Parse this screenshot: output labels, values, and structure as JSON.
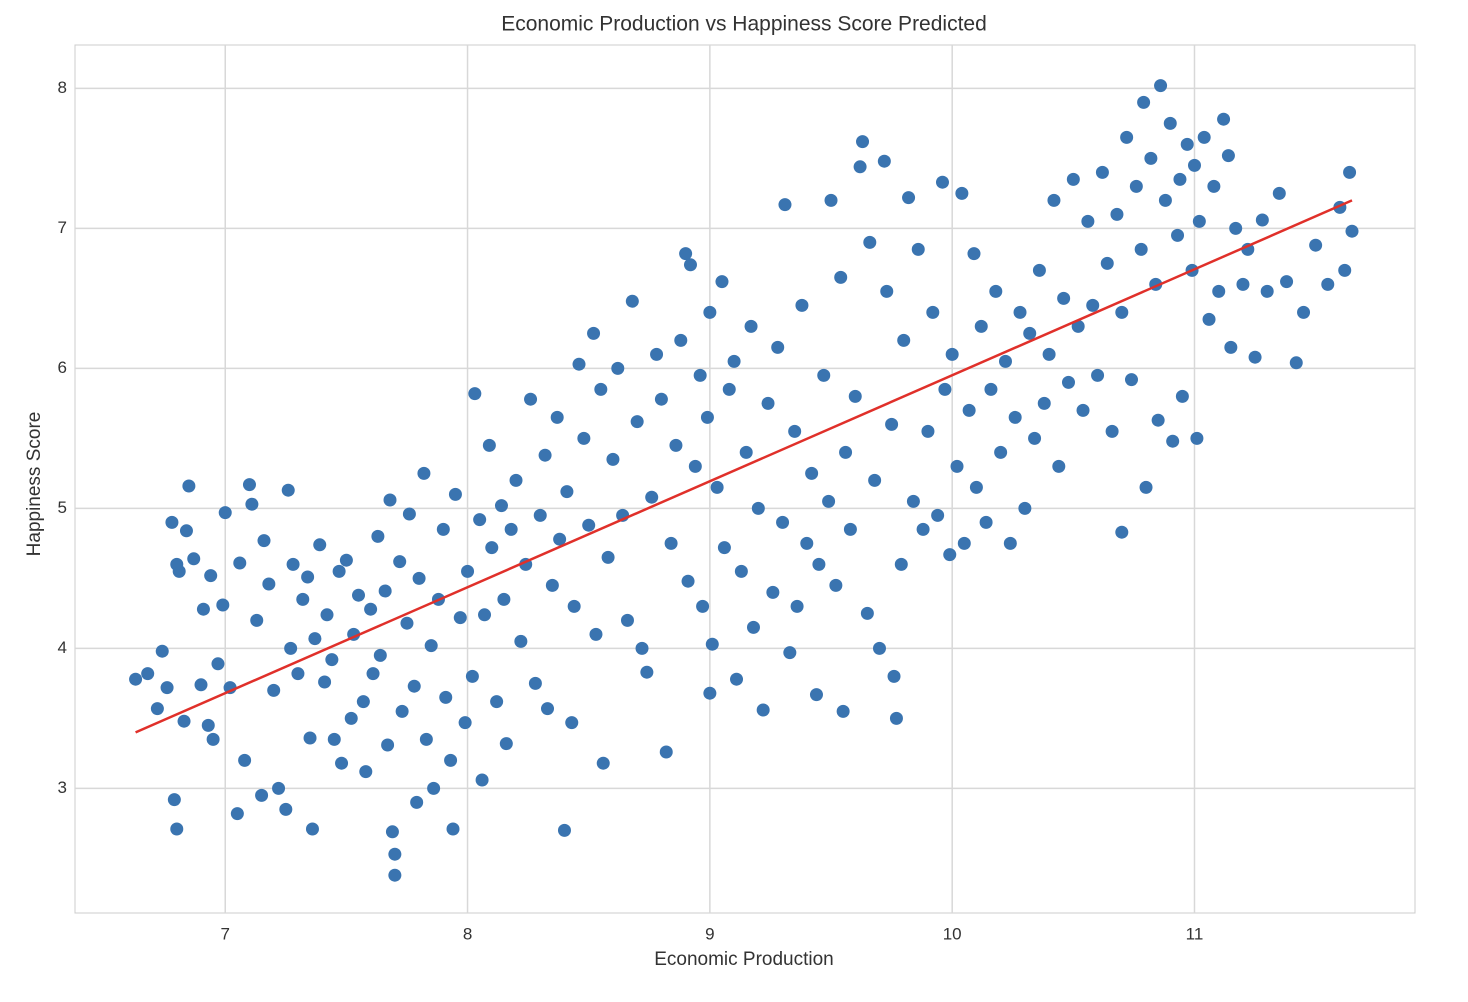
{
  "chart_data": {
    "type": "scatter",
    "title": "Economic Production vs Happiness Score Predicted",
    "xlabel": "Economic Production",
    "ylabel": "Happiness Score",
    "xlim": [
      6.38,
      11.91
    ],
    "ylim": [
      2.11,
      8.31
    ],
    "xticks": [
      7,
      8,
      9,
      10,
      11
    ],
    "yticks": [
      3,
      4,
      5,
      6,
      7,
      8
    ],
    "grid": true,
    "series": [
      {
        "type": "scatter",
        "color": "#3a74b0",
        "x": [
          6.63,
          6.68,
          6.72,
          6.74,
          6.76,
          6.78,
          6.79,
          6.8,
          6.8,
          6.81,
          6.83,
          6.84,
          6.85,
          6.87,
          6.9,
          6.91,
          6.93,
          6.94,
          6.95,
          6.97,
          6.99,
          7.0,
          7.02,
          7.05,
          7.06,
          7.08,
          7.1,
          7.11,
          7.13,
          7.15,
          7.16,
          7.18,
          7.2,
          7.22,
          7.25,
          7.26,
          7.27,
          7.28,
          7.3,
          7.32,
          7.34,
          7.35,
          7.36,
          7.37,
          7.39,
          7.41,
          7.42,
          7.44,
          7.45,
          7.47,
          7.48,
          7.5,
          7.52,
          7.53,
          7.55,
          7.57,
          7.58,
          7.6,
          7.61,
          7.63,
          7.64,
          7.66,
          7.67,
          7.68,
          7.69,
          7.7,
          7.7,
          7.72,
          7.73,
          7.75,
          7.76,
          7.78,
          7.79,
          7.8,
          7.82,
          7.83,
          7.85,
          7.86,
          7.88,
          7.9,
          7.91,
          7.93,
          7.94,
          7.95,
          7.97,
          7.99,
          8.0,
          8.02,
          8.03,
          8.05,
          8.06,
          8.07,
          8.09,
          8.1,
          8.12,
          8.14,
          8.15,
          8.16,
          8.18,
          8.2,
          8.22,
          8.24,
          8.26,
          8.28,
          8.3,
          8.32,
          8.33,
          8.35,
          8.37,
          8.38,
          8.4,
          8.41,
          8.43,
          8.44,
          8.46,
          8.48,
          8.5,
          8.52,
          8.53,
          8.55,
          8.56,
          8.58,
          8.6,
          8.62,
          8.64,
          8.66,
          8.68,
          8.7,
          8.72,
          8.74,
          8.76,
          8.78,
          8.8,
          8.82,
          8.84,
          8.86,
          8.88,
          8.9,
          8.91,
          8.92,
          8.94,
          8.96,
          8.97,
          8.99,
          9.0,
          9.0,
          9.01,
          9.03,
          9.05,
          9.06,
          9.08,
          9.1,
          9.11,
          9.13,
          9.15,
          9.17,
          9.18,
          9.2,
          9.22,
          9.24,
          9.26,
          9.28,
          9.3,
          9.31,
          9.33,
          9.35,
          9.36,
          9.38,
          9.4,
          9.42,
          9.44,
          9.45,
          9.47,
          9.49,
          9.5,
          9.52,
          9.54,
          9.55,
          9.56,
          9.58,
          9.6,
          9.62,
          9.63,
          9.65,
          9.66,
          9.68,
          9.7,
          9.72,
          9.73,
          9.75,
          9.76,
          9.77,
          9.79,
          9.8,
          9.82,
          9.84,
          9.86,
          9.88,
          9.9,
          9.92,
          9.94,
          9.96,
          9.97,
          9.99,
          10.0,
          10.02,
          10.04,
          10.05,
          10.07,
          10.09,
          10.1,
          10.12,
          10.14,
          10.16,
          10.18,
          10.2,
          10.22,
          10.24,
          10.26,
          10.28,
          10.3,
          10.32,
          10.34,
          10.36,
          10.38,
          10.4,
          10.42,
          10.44,
          10.46,
          10.48,
          10.5,
          10.52,
          10.54,
          10.56,
          10.58,
          10.6,
          10.62,
          10.64,
          10.66,
          10.68,
          10.7,
          10.7,
          10.72,
          10.74,
          10.76,
          10.78,
          10.79,
          10.8,
          10.82,
          10.84,
          10.85,
          10.86,
          10.88,
          10.9,
          10.91,
          10.93,
          10.94,
          10.95,
          10.97,
          10.99,
          11.0,
          11.01,
          11.02,
          11.04,
          11.06,
          11.08,
          11.1,
          11.12,
          11.14,
          11.15,
          11.17,
          11.2,
          11.22,
          11.25,
          11.28,
          11.3,
          11.35,
          11.38,
          11.42,
          11.45,
          11.5,
          11.55,
          11.6,
          11.62,
          11.64,
          11.65
        ],
        "values": [
          3.78,
          3.82,
          3.57,
          3.98,
          3.72,
          4.9,
          2.92,
          2.71,
          4.6,
          4.55,
          3.48,
          4.84,
          5.16,
          4.64,
          3.74,
          4.28,
          3.45,
          4.52,
          3.35,
          3.89,
          4.31,
          4.97,
          3.72,
          2.82,
          4.61,
          3.2,
          5.17,
          5.03,
          4.2,
          2.95,
          4.77,
          4.46,
          3.7,
          3.0,
          2.85,
          5.13,
          4.0,
          4.6,
          3.82,
          4.35,
          4.51,
          3.36,
          2.71,
          4.07,
          4.74,
          3.76,
          4.24,
          3.92,
          3.35,
          4.55,
          3.18,
          4.63,
          3.5,
          4.1,
          4.38,
          3.62,
          3.12,
          4.28,
          3.82,
          4.8,
          3.95,
          4.41,
          3.31,
          5.06,
          2.69,
          2.38,
          2.53,
          4.62,
          3.55,
          4.18,
          4.96,
          3.73,
          2.9,
          4.5,
          5.25,
          3.35,
          4.02,
          3.0,
          4.35,
          4.85,
          3.65,
          3.2,
          2.71,
          5.1,
          4.22,
          3.47,
          4.55,
          3.8,
          5.82,
          4.92,
          3.06,
          4.24,
          5.45,
          4.72,
          3.62,
          5.02,
          4.35,
          3.32,
          4.85,
          5.2,
          4.05,
          4.6,
          5.78,
          3.75,
          4.95,
          5.38,
          3.57,
          4.45,
          5.65,
          4.78,
          2.7,
          5.12,
          3.47,
          4.3,
          6.03,
          5.5,
          4.88,
          6.25,
          4.1,
          5.85,
          3.18,
          4.65,
          5.35,
          6.0,
          4.95,
          4.2,
          6.48,
          5.62,
          4.0,
          3.83,
          5.08,
          6.1,
          5.78,
          3.26,
          4.75,
          5.45,
          6.2,
          6.82,
          4.48,
          6.74,
          5.3,
          5.95,
          4.3,
          5.65,
          6.4,
          3.68,
          4.03,
          5.15,
          6.62,
          4.72,
          5.85,
          6.05,
          3.78,
          4.55,
          5.4,
          6.3,
          4.15,
          5.0,
          3.56,
          5.75,
          4.4,
          6.15,
          4.9,
          7.17,
          3.97,
          5.55,
          4.3,
          6.45,
          4.75,
          5.25,
          3.67,
          4.6,
          5.95,
          5.05,
          7.2,
          4.45,
          6.65,
          3.55,
          5.4,
          4.85,
          5.8,
          7.44,
          7.62,
          4.25,
          6.9,
          5.2,
          4.0,
          7.48,
          6.55,
          5.6,
          3.8,
          3.5,
          4.6,
          6.2,
          7.22,
          5.05,
          6.85,
          4.85,
          5.55,
          6.4,
          4.95,
          7.33,
          5.85,
          4.67,
          6.1,
          5.3,
          7.25,
          4.75,
          5.7,
          6.82,
          5.15,
          6.3,
          4.9,
          5.85,
          6.55,
          5.4,
          6.05,
          4.75,
          5.65,
          6.4,
          5.0,
          6.25,
          5.5,
          6.7,
          5.75,
          6.1,
          7.2,
          5.3,
          6.5,
          5.9,
          7.35,
          6.3,
          5.7,
          7.05,
          6.45,
          5.95,
          7.4,
          6.75,
          5.55,
          7.1,
          6.4,
          4.83,
          7.65,
          5.92,
          7.3,
          6.85,
          7.9,
          5.15,
          7.5,
          6.6,
          5.63,
          8.02,
          7.2,
          7.75,
          5.48,
          6.95,
          7.35,
          5.8,
          7.6,
          6.7,
          7.45,
          5.5,
          7.05,
          7.65,
          6.35,
          7.3,
          6.55,
          7.78,
          7.52,
          6.15,
          7.0,
          6.6,
          6.85,
          6.08,
          7.06,
          6.55,
          7.25,
          6.62,
          6.04,
          6.4,
          6.88,
          6.6,
          7.15,
          6.7,
          7.4,
          6.98
        ]
      },
      {
        "type": "line",
        "color": "#e0302a",
        "x": [
          6.63,
          11.65
        ],
        "values": [
          3.4,
          7.2
        ]
      }
    ]
  }
}
